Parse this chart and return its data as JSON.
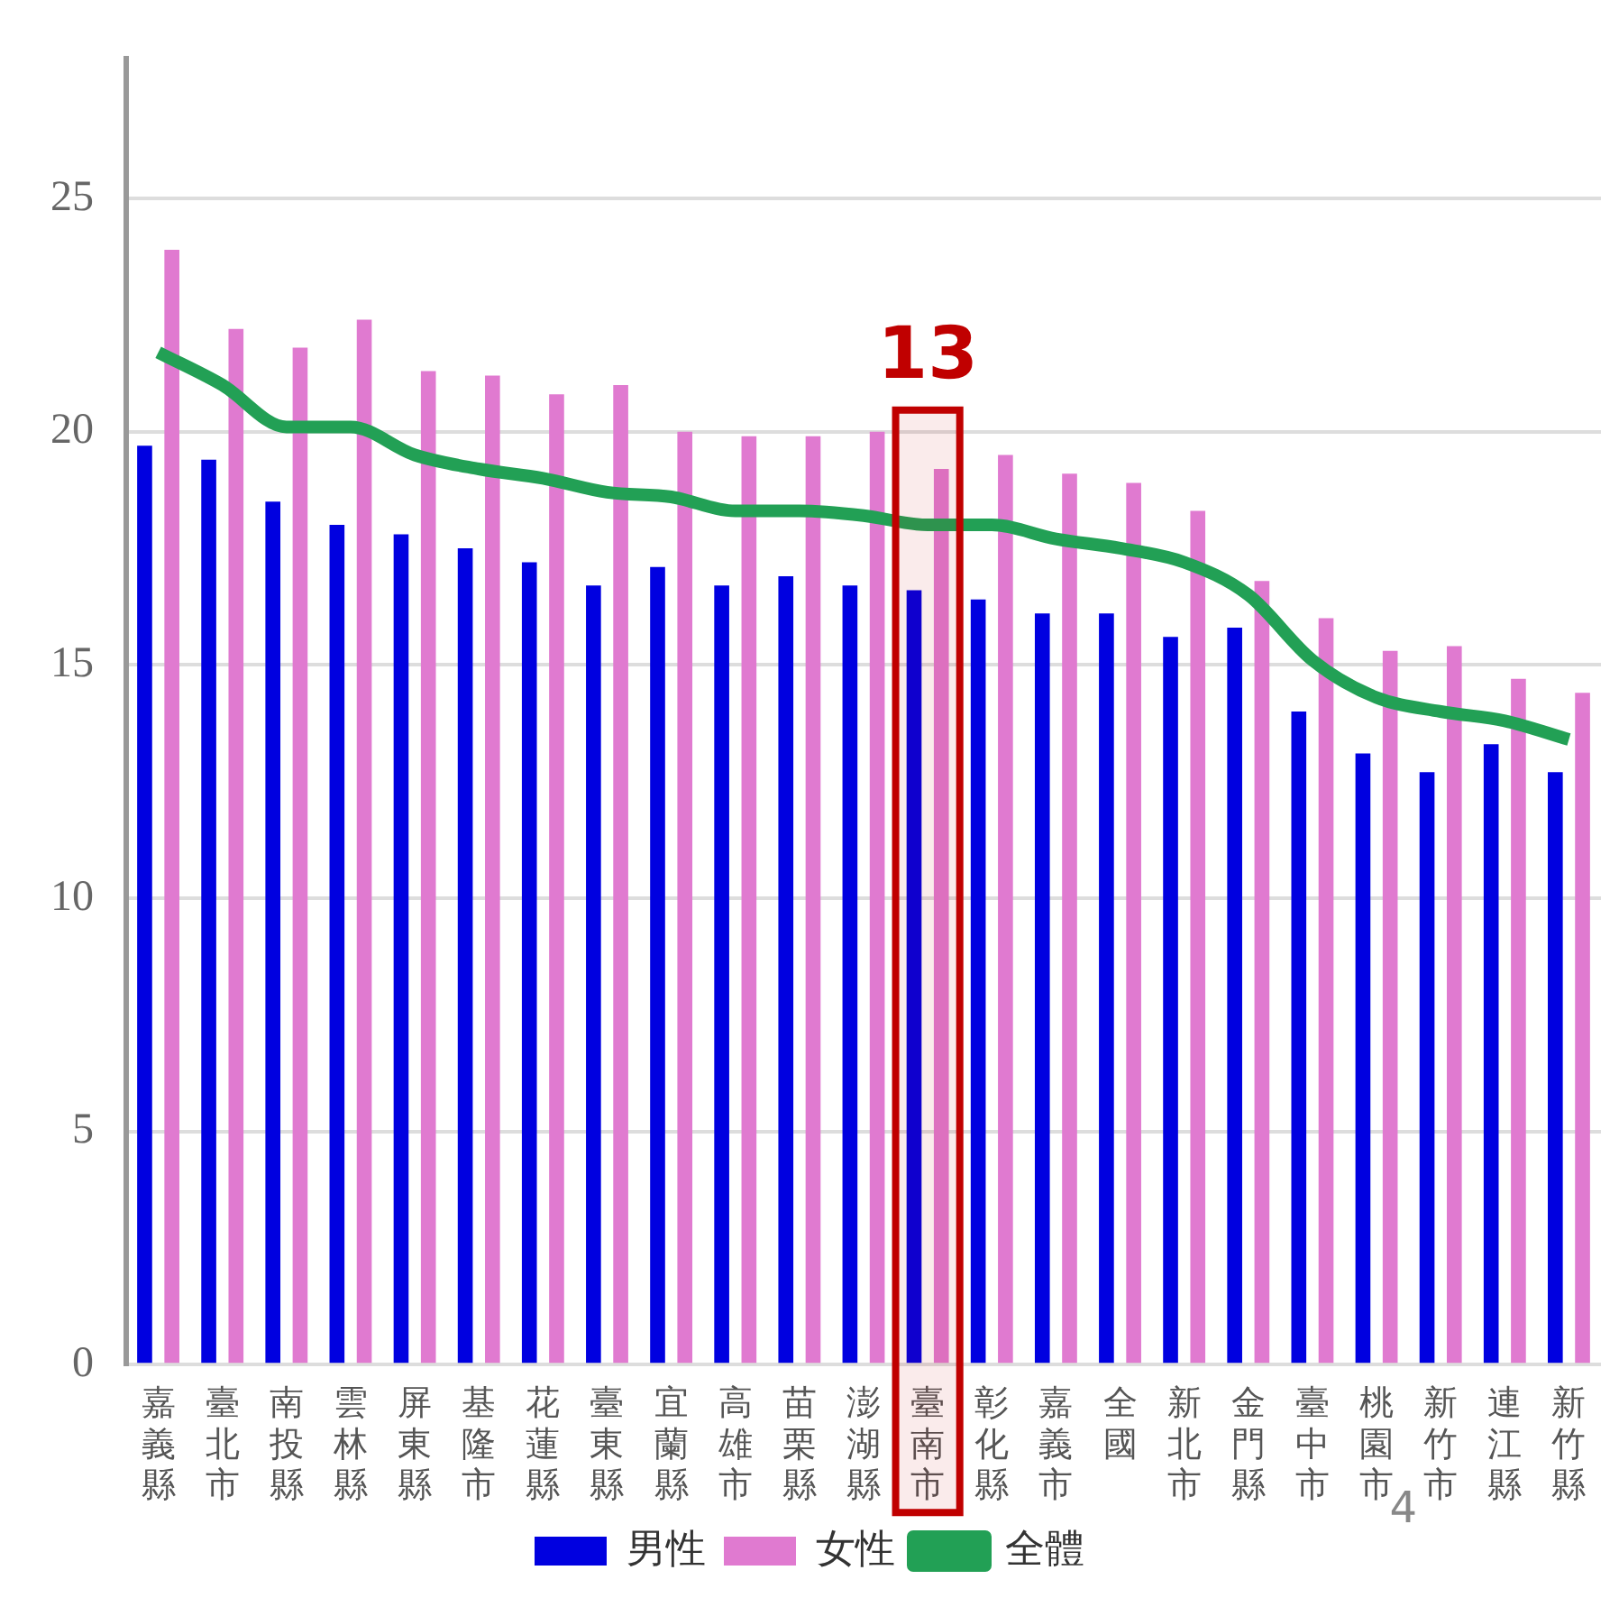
{
  "chart_data": {
    "type": "bar",
    "categories": [
      "嘉義縣",
      "臺北市",
      "南投縣",
      "雲林縣",
      "屏東縣",
      "基隆市",
      "花蓮縣",
      "臺東縣",
      "宜蘭縣",
      "高雄市",
      "苗栗縣",
      "澎湖縣",
      "臺南市",
      "彰化縣",
      "嘉義市",
      "全國",
      "新北市",
      "金門縣",
      "臺中市",
      "桃園市",
      "新竹市",
      "連江縣",
      "新竹縣"
    ],
    "series": [
      {
        "name": "男性",
        "color": "#0000e0",
        "values": [
          19.7,
          19.4,
          18.5,
          18.0,
          17.8,
          17.5,
          17.2,
          16.7,
          17.1,
          16.7,
          16.9,
          16.7,
          16.6,
          16.4,
          16.1,
          16.1,
          15.6,
          15.8,
          14.0,
          13.1,
          12.7,
          13.3,
          12.7
        ]
      },
      {
        "name": "女性",
        "color": "#e07ad0",
        "values": [
          23.9,
          22.2,
          21.8,
          22.4,
          21.3,
          21.2,
          20.8,
          21.0,
          20.0,
          19.9,
          19.9,
          20.0,
          19.2,
          19.5,
          19.1,
          18.9,
          18.3,
          16.8,
          16.0,
          15.3,
          15.4,
          14.7,
          14.4
        ]
      },
      {
        "name": "全體",
        "type": "line",
        "color": "#22a055",
        "values": [
          21.7,
          21.0,
          20.1,
          20.1,
          19.5,
          19.2,
          19.0,
          18.7,
          18.6,
          18.3,
          18.3,
          18.2,
          18.0,
          18.0,
          17.7,
          17.5,
          17.2,
          16.5,
          15.1,
          14.3,
          14.0,
          13.8,
          13.4
        ]
      }
    ],
    "ylim": [
      0,
      28
    ],
    "yticks": [
      0,
      5,
      10,
      15,
      20,
      25
    ],
    "grid": "y",
    "legend": "bottom",
    "marker": "none",
    "bands": [
      {
        "axis": "x",
        "from": "臺南市",
        "to": "臺南市",
        "label": "13",
        "color": "#c00000"
      }
    ],
    "annotations": [
      "4"
    ]
  }
}
